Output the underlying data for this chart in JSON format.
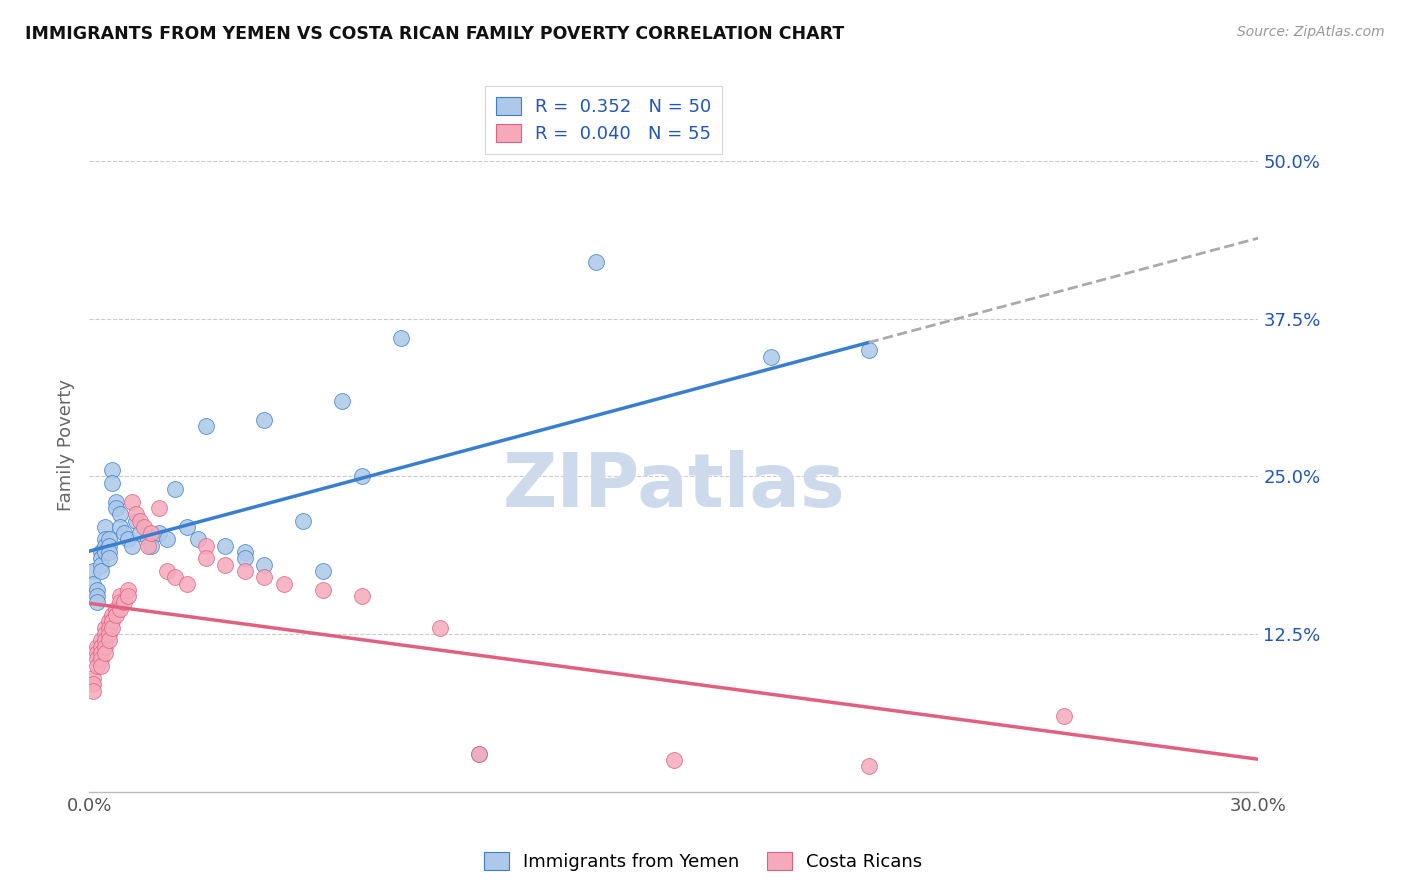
{
  "title": "IMMIGRANTS FROM YEMEN VS COSTA RICAN FAMILY POVERTY CORRELATION CHART",
  "source": "Source: ZipAtlas.com",
  "ylabel": "Family Poverty",
  "ytick_labels": [
    "50.0%",
    "37.5%",
    "25.0%",
    "12.5%"
  ],
  "ytick_values": [
    0.5,
    0.375,
    0.25,
    0.125
  ],
  "legend_label1": "Immigrants from Yemen",
  "legend_label2": "Costa Ricans",
  "legend_r1": "R =  0.352",
  "legend_n1": "N = 50",
  "legend_r2": "R =  0.040",
  "legend_n2": "N = 55",
  "color_blue": "#adc8e8",
  "color_pink": "#f5aabb",
  "color_blue_line": "#3a7ecf",
  "color_pink_line": "#e06080",
  "color_text_blue": "#2255bb",
  "watermark_color": "#ccdaec",
  "xlim": [
    0.0,
    0.3
  ],
  "ylim": [
    0.0,
    0.55
  ],
  "figsize": [
    14.06,
    8.92
  ],
  "dpi": 100,
  "yemen_x": [
    0.001,
    0.001,
    0.002,
    0.002,
    0.002,
    0.003,
    0.003,
    0.003,
    0.003,
    0.004,
    0.004,
    0.004,
    0.004,
    0.005,
    0.005,
    0.005,
    0.005,
    0.006,
    0.006,
    0.007,
    0.007,
    0.008,
    0.008,
    0.009,
    0.01,
    0.011,
    0.012,
    0.013,
    0.015,
    0.016,
    0.018,
    0.02,
    0.022,
    0.025,
    0.028,
    0.035,
    0.04,
    0.045,
    0.055,
    0.065,
    0.07,
    0.08,
    0.1,
    0.13,
    0.175,
    0.2,
    0.03,
    0.04,
    0.045,
    0.06
  ],
  "yemen_y": [
    0.175,
    0.165,
    0.16,
    0.155,
    0.15,
    0.19,
    0.185,
    0.18,
    0.175,
    0.21,
    0.2,
    0.195,
    0.19,
    0.2,
    0.195,
    0.19,
    0.185,
    0.255,
    0.245,
    0.23,
    0.225,
    0.22,
    0.21,
    0.205,
    0.2,
    0.195,
    0.215,
    0.205,
    0.2,
    0.195,
    0.205,
    0.2,
    0.24,
    0.21,
    0.2,
    0.195,
    0.19,
    0.295,
    0.215,
    0.31,
    0.25,
    0.36,
    0.03,
    0.42,
    0.345,
    0.35,
    0.29,
    0.185,
    0.18,
    0.175
  ],
  "cr_x": [
    0.001,
    0.001,
    0.001,
    0.002,
    0.002,
    0.002,
    0.002,
    0.003,
    0.003,
    0.003,
    0.003,
    0.003,
    0.004,
    0.004,
    0.004,
    0.004,
    0.004,
    0.005,
    0.005,
    0.005,
    0.005,
    0.006,
    0.006,
    0.006,
    0.007,
    0.007,
    0.008,
    0.008,
    0.008,
    0.009,
    0.01,
    0.01,
    0.011,
    0.012,
    0.013,
    0.014,
    0.015,
    0.016,
    0.018,
    0.02,
    0.022,
    0.025,
    0.03,
    0.03,
    0.035,
    0.04,
    0.045,
    0.05,
    0.06,
    0.07,
    0.09,
    0.1,
    0.15,
    0.2,
    0.25
  ],
  "cr_y": [
    0.09,
    0.085,
    0.08,
    0.115,
    0.11,
    0.105,
    0.1,
    0.12,
    0.115,
    0.11,
    0.105,
    0.1,
    0.13,
    0.125,
    0.12,
    0.115,
    0.11,
    0.135,
    0.13,
    0.125,
    0.12,
    0.14,
    0.135,
    0.13,
    0.145,
    0.14,
    0.155,
    0.15,
    0.145,
    0.15,
    0.16,
    0.155,
    0.23,
    0.22,
    0.215,
    0.21,
    0.195,
    0.205,
    0.225,
    0.175,
    0.17,
    0.165,
    0.195,
    0.185,
    0.18,
    0.175,
    0.17,
    0.165,
    0.16,
    0.155,
    0.13,
    0.03,
    0.025,
    0.02,
    0.06
  ]
}
